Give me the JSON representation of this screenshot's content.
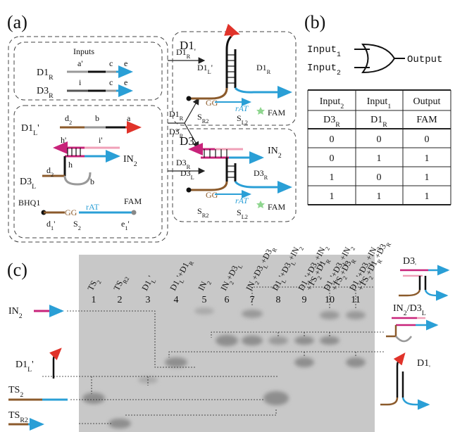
{
  "panel_a": {
    "label": "(a)",
    "inputs": {
      "title": "Inputs",
      "d1r": {
        "name": [
          "D1",
          "R"
        ],
        "domains": [
          "a'",
          "c",
          "e"
        ]
      },
      "d3r": {
        "name": [
          "D3",
          "R"
        ],
        "domains": [
          "i",
          "c",
          "e"
        ]
      }
    },
    "complex": {
      "d1l": {
        "name": [
          "D1",
          "L",
          "'"
        ],
        "domains": [
          [
            "d",
            "2"
          ],
          "b",
          "a"
        ]
      },
      "in2": {
        "name": [
          "IN",
          "2"
        ],
        "domains": [
          "h'",
          "i'"
        ]
      },
      "d3l": {
        "name": [
          "D3",
          "L"
        ],
        "domains": [
          [
            "d",
            "2"
          ],
          "h",
          "b"
        ]
      },
      "reporter": {
        "quencher": "BHQ1",
        "fluor": "FAM",
        "gg": "GG",
        "rat": "rAT",
        "domains": [
          [
            "d",
            "1",
            "'"
          ],
          [
            "S",
            "2"
          ],
          [
            "e",
            "1",
            "'"
          ]
        ]
      }
    },
    "arrows": {
      "top": [
        "D1",
        "R"
      ],
      "fork": [
        [
          "D1",
          "R"
        ],
        [
          "D3",
          "R"
        ]
      ],
      "bottom": [
        "D3",
        "R"
      ]
    },
    "d1p": {
      "title": [
        "D1",
        "'"
      ],
      "left": [
        "D1",
        "L",
        "'"
      ],
      "right": [
        "D1",
        "R"
      ],
      "gg": "GG",
      "rat": "rAT",
      "sr2": [
        "S",
        "R2"
      ],
      "sl2": [
        "S",
        "L2"
      ],
      "fluor": "FAM"
    },
    "d3p": {
      "title": [
        "D3",
        "'"
      ],
      "in2": [
        "IN",
        "2"
      ],
      "left": [
        "D3",
        "L"
      ],
      "right": [
        "D3",
        "R"
      ],
      "gg": "GG",
      "rat": "rAT",
      "sr2": [
        "S",
        "R2"
      ],
      "sl2": [
        "S",
        "L2"
      ],
      "fluor": "FAM"
    }
  },
  "panel_b": {
    "label": "(b)",
    "gate": {
      "input1": [
        "Input",
        "1"
      ],
      "input2": [
        "Input",
        "2"
      ],
      "output": "Output"
    },
    "table": {
      "header": [
        [
          "Input",
          "2"
        ],
        [
          "Input",
          "1"
        ],
        "Output"
      ],
      "species": [
        [
          "D3",
          "R"
        ],
        [
          "D1",
          "R"
        ],
        "FAM"
      ],
      "rows": [
        [
          0,
          0,
          0
        ],
        [
          0,
          1,
          1
        ],
        [
          1,
          0,
          1
        ],
        [
          1,
          1,
          1
        ]
      ]
    }
  },
  "panel_c": {
    "label": "(c)",
    "lanes": [
      {
        "number": 1,
        "label": [
          [
            "TS",
            "2"
          ]
        ]
      },
      {
        "number": 2,
        "label": [
          [
            "TS",
            "R2"
          ]
        ]
      },
      {
        "number": 3,
        "label": [
          [
            "D1",
            "L",
            "'"
          ]
        ]
      },
      {
        "number": 4,
        "label": [
          [
            "D1",
            "L",
            "'+D1",
            "R"
          ]
        ]
      },
      {
        "number": 5,
        "label": [
          [
            "IN",
            "2"
          ]
        ]
      },
      {
        "number": 6,
        "label": [
          [
            "IN",
            "2",
            "+D3",
            "L"
          ]
        ]
      },
      {
        "number": 7,
        "label": [
          [
            "IN",
            "2",
            "+D3",
            "L",
            "+D3",
            "R"
          ]
        ]
      },
      {
        "number": 8,
        "label": [
          [
            "D1",
            "L",
            "'+D3",
            "L",
            "+IN",
            "2"
          ]
        ]
      },
      {
        "number": 9,
        "label": [
          [
            "D1",
            "L",
            "'+D3",
            "L",
            "+IN",
            "2"
          ],
          [
            "+TS",
            "2",
            "+D1",
            "R"
          ]
        ]
      },
      {
        "number": 10,
        "label": [
          [
            "D1",
            "L",
            "'+D3",
            "L",
            "+IN",
            "2"
          ],
          [
            "+TS",
            "2",
            "+D3",
            "R"
          ]
        ]
      },
      {
        "number": 11,
        "label": [
          [
            "D1",
            "L",
            "'+D3",
            "L",
            "+IN",
            "2"
          ],
          [
            "+TS",
            "2",
            "+D1",
            "R",
            "+D3",
            "R"
          ]
        ]
      }
    ],
    "left_labels": [
      [
        "IN",
        "2"
      ],
      [
        "D1",
        "L",
        "'"
      ],
      [
        "TS",
        "2"
      ],
      [
        "TS",
        "R2"
      ]
    ],
    "right_labels": [
      [
        "D3",
        "'"
      ],
      [
        "IN",
        "2",
        "/D3",
        "L"
      ],
      [
        "D1",
        "'"
      ]
    ]
  }
}
